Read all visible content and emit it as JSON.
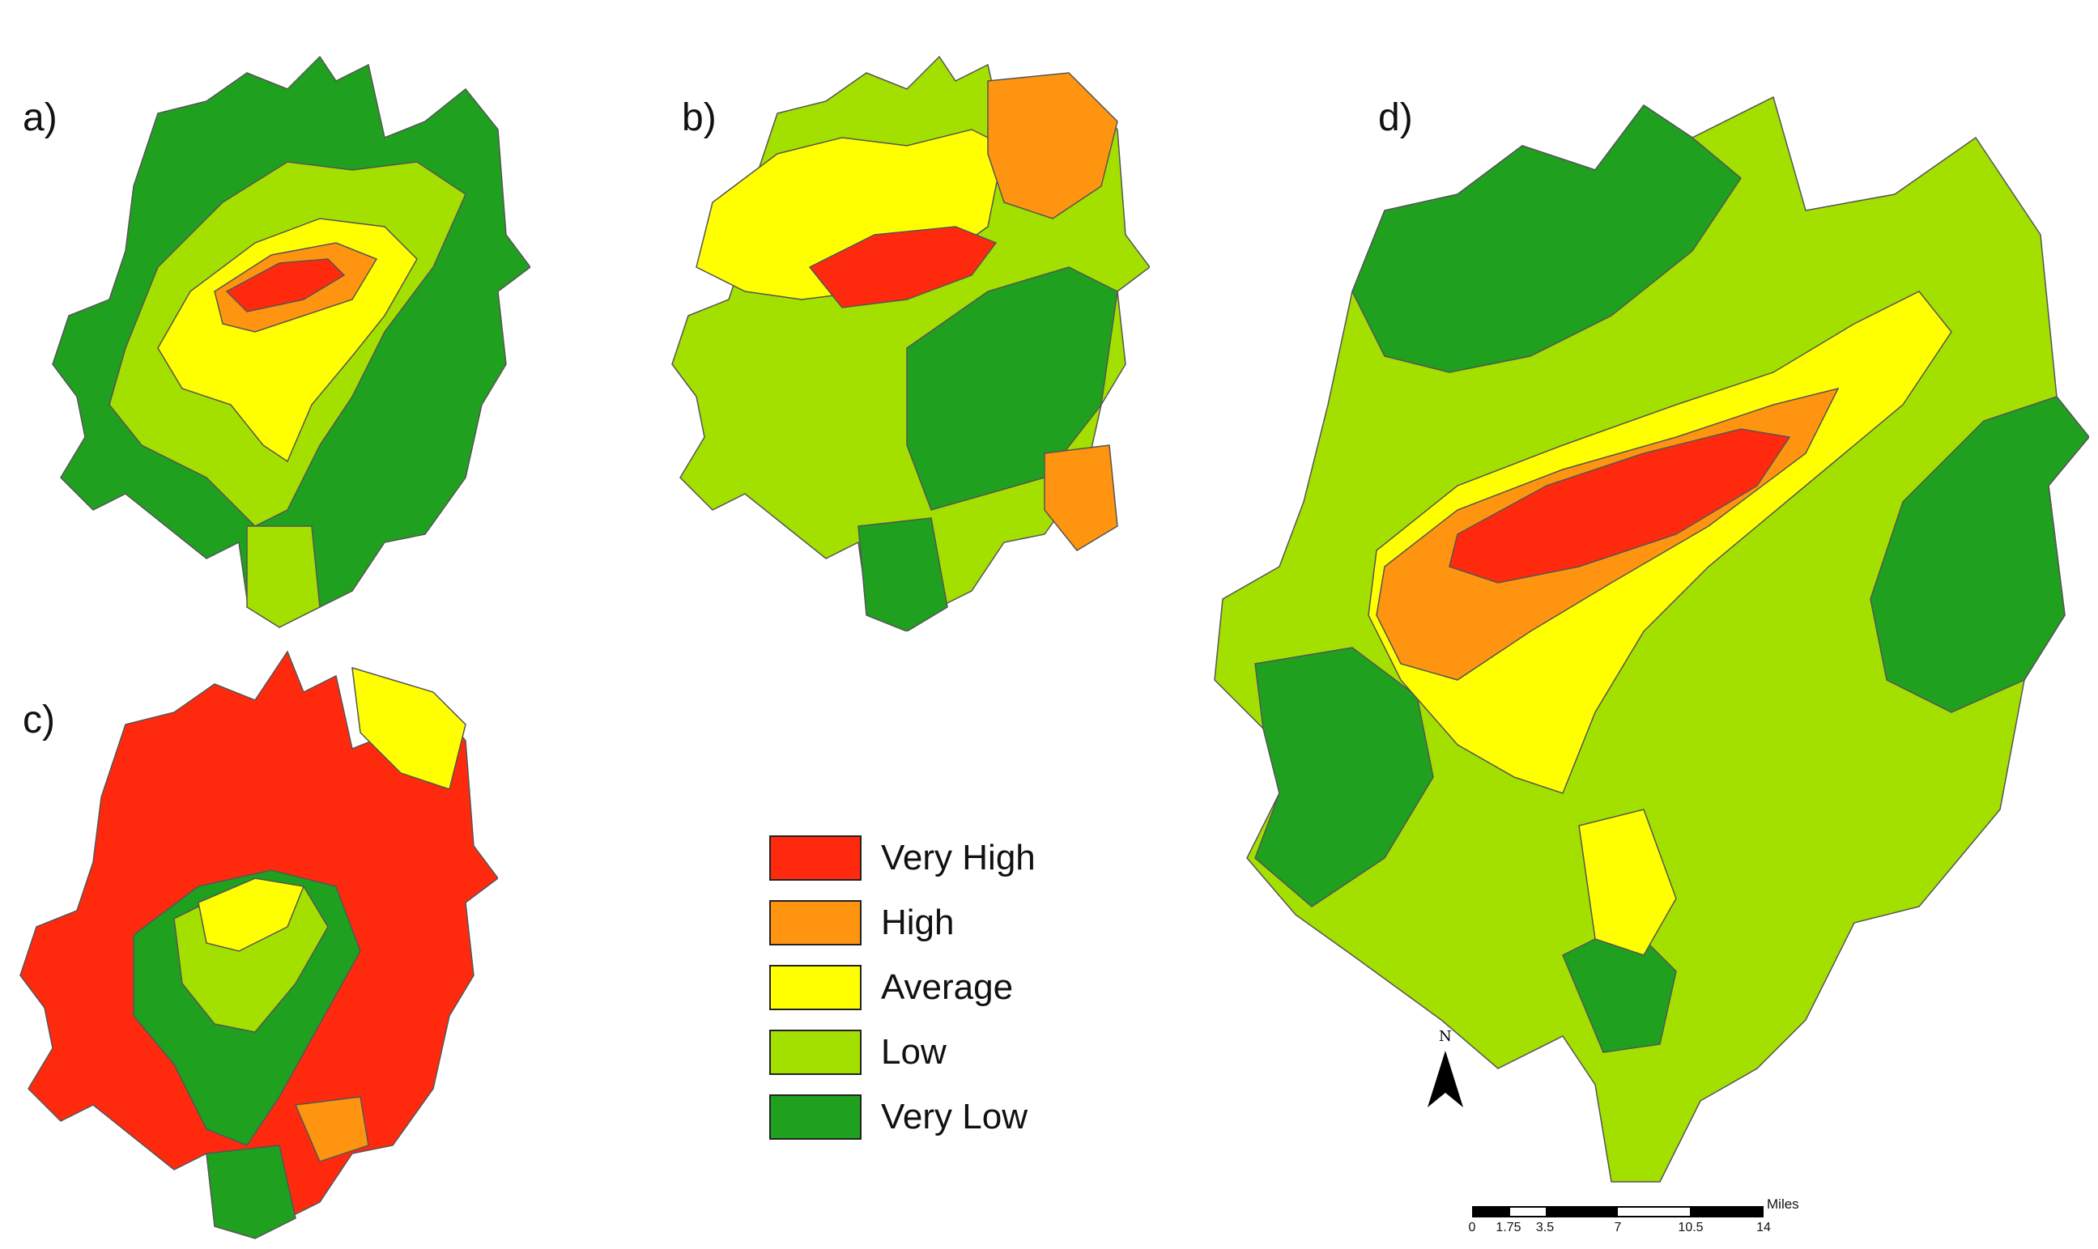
{
  "panels": {
    "a": {
      "label": "a)"
    },
    "b": {
      "label": "b)"
    },
    "c": {
      "label": "c)"
    },
    "d": {
      "label": "d)"
    }
  },
  "legend": {
    "items": [
      {
        "label": "Very High",
        "color": "#ff2a0e"
      },
      {
        "label": "High",
        "color": "#ff9410"
      },
      {
        "label": "Average",
        "color": "#ffff00"
      },
      {
        "label": "Low",
        "color": "#a3e000"
      },
      {
        "label": "Very Low",
        "color": "#1fa01f"
      }
    ]
  },
  "colors": {
    "very_high": "#ff2a0e",
    "high": "#ff9410",
    "average": "#ffff00",
    "low": "#a3e000",
    "very_low": "#1fa01f",
    "tract_border": "#555555"
  },
  "north_arrow": {
    "letter": "N"
  },
  "scale_bar": {
    "unit": "Miles",
    "ticks": [
      "0",
      "1.75",
      "3.5",
      "7",
      "10.5",
      "14"
    ]
  }
}
